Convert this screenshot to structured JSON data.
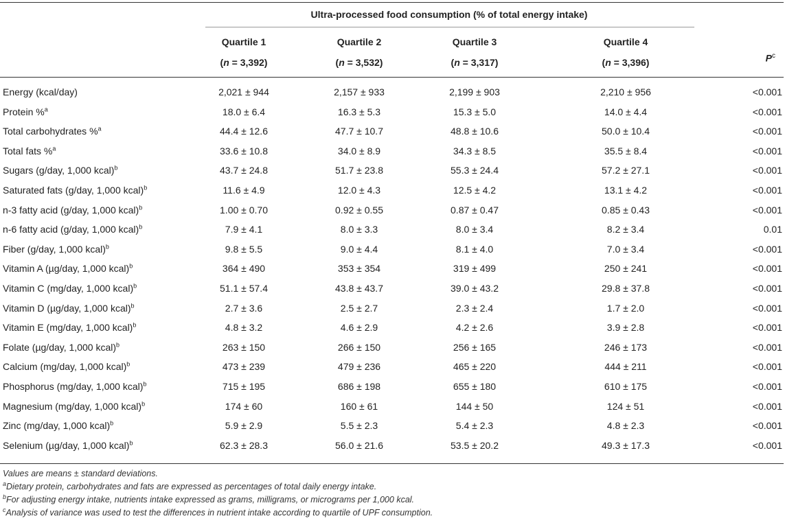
{
  "table": {
    "spanning_header": "Ultra-processed food consumption (% of total energy intake)",
    "columns": [
      {
        "label": "Quartile 1",
        "n_prefix": "(",
        "n_symbol": "n",
        "n_value": " = 3,392)"
      },
      {
        "label": "Quartile 2",
        "n_prefix": "(",
        "n_symbol": "n",
        "n_value": " = 3,532)"
      },
      {
        "label": "Quartile 3",
        "n_prefix": "(",
        "n_symbol": "n",
        "n_value": " = 3,317)"
      },
      {
        "label": "Quartile 4",
        "n_prefix": "(",
        "n_symbol": "n",
        "n_value": " = 3,396)"
      }
    ],
    "p_header": "P",
    "p_header_sup": "c",
    "rows": [
      {
        "label": "Energy (kcal/day)",
        "sup": "",
        "values": [
          "2,021 ± 944",
          "2,157 ± 933",
          "2,199 ± 903",
          "2,210 ± 956"
        ],
        "p": "<0.001"
      },
      {
        "label": "Protein %",
        "sup": "a",
        "values": [
          "18.0 ± 6.4",
          "16.3 ± 5.3",
          "15.3 ± 5.0",
          "14.0 ± 4.4"
        ],
        "p": "<0.001"
      },
      {
        "label": "Total carbohydrates %",
        "sup": "a",
        "values": [
          "44.4 ± 12.6",
          "47.7 ± 10.7",
          "48.8 ± 10.6",
          "50.0 ± 10.4"
        ],
        "p": "<0.001"
      },
      {
        "label": "Total fats %",
        "sup": "a",
        "values": [
          "33.6 ± 10.8",
          "34.0 ± 8.9",
          "34.3 ± 8.5",
          "35.5 ± 8.4"
        ],
        "p": "<0.001"
      },
      {
        "label": "Sugars (g/day, 1,000 kcal)",
        "sup": "b",
        "values": [
          "43.7 ± 24.8",
          "51.7 ± 23.8",
          "55.3 ± 24.4",
          "57.2 ± 27.1"
        ],
        "p": "<0.001"
      },
      {
        "label": "Saturated fats (g/day, 1,000 kcal)",
        "sup": "b",
        "values": [
          "11.6 ± 4.9",
          "12.0 ± 4.3",
          "12.5 ± 4.2",
          "13.1 ± 4.2"
        ],
        "p": "<0.001"
      },
      {
        "label": "n-3 fatty acid (g/day, 1,000 kcal)",
        "sup": "b",
        "values": [
          "1.00 ± 0.70",
          "0.92 ± 0.55",
          "0.87 ± 0.47",
          "0.85 ± 0.43"
        ],
        "p": "<0.001"
      },
      {
        "label": "n-6 fatty acid (g/day, 1,000 kcal)",
        "sup": "b",
        "values": [
          "7.9 ± 4.1",
          "8.0 ± 3.3",
          "8.0 ± 3.4",
          "8.2 ± 3.4"
        ],
        "p": "0.01"
      },
      {
        "label": "Fiber (g/day, 1,000 kcal)",
        "sup": "b",
        "values": [
          "9.8 ± 5.5",
          "9.0 ± 4.4",
          "8.1 ± 4.0",
          "7.0 ± 3.4"
        ],
        "p": "<0.001"
      },
      {
        "label": "Vitamin A (µg/day, 1,000 kcal)",
        "sup": "b",
        "values": [
          "364 ± 490",
          "353 ± 354",
          "319 ± 499",
          "250 ± 241"
        ],
        "p": "<0.001"
      },
      {
        "label": "Vitamin C (mg/day, 1,000 kcal)",
        "sup": "b",
        "values": [
          "51.1 ± 57.4",
          "43.8 ± 43.7",
          "39.0 ± 43.2",
          "29.8 ± 37.8"
        ],
        "p": "<0.001"
      },
      {
        "label": "Vitamin D (µg/day, 1,000 kcal)",
        "sup": "b",
        "values": [
          "2.7 ± 3.6",
          "2.5 ± 2.7",
          "2.3 ± 2.4",
          "1.7 ± 2.0"
        ],
        "p": "<0.001"
      },
      {
        "label": "Vitamin E (mg/day, 1,000 kcal)",
        "sup": "b",
        "values": [
          "4.8 ± 3.2",
          "4.6 ± 2.9",
          "4.2 ± 2.6",
          "3.9 ± 2.8"
        ],
        "p": "<0.001"
      },
      {
        "label": "Folate (µg/day, 1,000 kcal)",
        "sup": "b",
        "values": [
          "263 ± 150",
          "266 ± 150",
          "256 ± 165",
          "246 ± 173"
        ],
        "p": "<0.001"
      },
      {
        "label": "Calcium (mg/day, 1,000 kcal)",
        "sup": "b",
        "values": [
          "473 ± 239",
          "479 ± 236",
          "465 ± 220",
          "444 ± 211"
        ],
        "p": "<0.001"
      },
      {
        "label": "Phosphorus (mg/day, 1,000 kcal)",
        "sup": "b",
        "values": [
          "715 ± 195",
          "686 ± 198",
          "655 ± 180",
          "610 ± 175"
        ],
        "p": "<0.001"
      },
      {
        "label": "Magnesium (mg/day, 1,000 kcal)",
        "sup": "b",
        "values": [
          "174 ± 60",
          "160 ± 61",
          "144 ± 50",
          "124 ± 51"
        ],
        "p": "<0.001"
      },
      {
        "label": "Zinc (mg/day, 1,000 kcal)",
        "sup": "b",
        "values": [
          "5.9 ± 2.9",
          "5.5 ± 2.3",
          "5.4 ± 2.3",
          "4.8 ± 2.3"
        ],
        "p": "<0.001"
      },
      {
        "label": "Selenium (µg/day, 1,000 kcal)",
        "sup": "b",
        "values": [
          "62.3 ± 28.3",
          "56.0 ± 21.6",
          "53.5 ± 20.2",
          "49.3 ± 17.3"
        ],
        "p": "<0.001"
      }
    ]
  },
  "footnotes": [
    {
      "sup": "",
      "text": "Values are means ± standard deviations."
    },
    {
      "sup": "a",
      "text": "Dietary protein, carbohydrates and fats are expressed as percentages of total daily energy intake."
    },
    {
      "sup": "b",
      "text": "For adjusting energy intake, nutrients intake expressed as grams, milligrams, or micrograms per 1,000 kcal."
    },
    {
      "sup": "c",
      "text": "Analysis of variance was used to test the differences in nutrient intake according to quartile of UPF consumption."
    }
  ]
}
